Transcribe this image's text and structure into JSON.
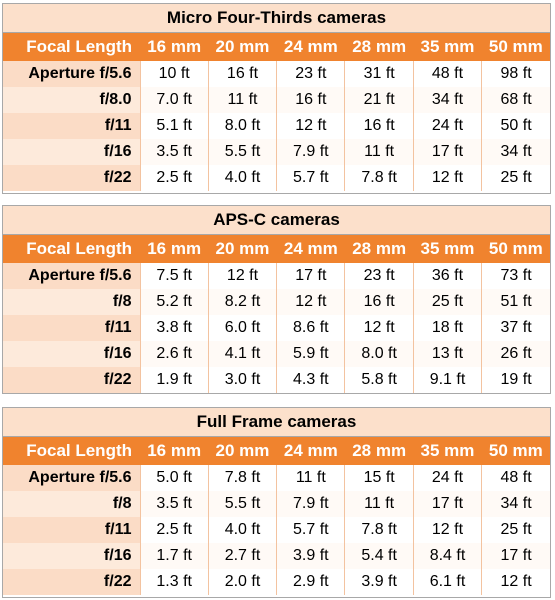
{
  "columns": [
    "16 mm",
    "20 mm",
    "24 mm",
    "28 mm",
    "35 mm",
    "50 mm"
  ],
  "header_label": "Focal Length",
  "tables": [
    {
      "title": "Micro Four-Thirds cameras",
      "rows": [
        {
          "label": "Aperture f/5.6",
          "values": [
            "10 ft",
            "16 ft",
            "23 ft",
            "31 ft",
            "48 ft",
            "98 ft"
          ]
        },
        {
          "label": "f/8.0",
          "values": [
            "7.0 ft",
            "11 ft",
            "16 ft",
            "21 ft",
            "34 ft",
            "68 ft"
          ]
        },
        {
          "label": "f/11",
          "values": [
            "5.1 ft",
            "8.0 ft",
            "12 ft",
            "16 ft",
            "24 ft",
            "50 ft"
          ]
        },
        {
          "label": "f/16",
          "values": [
            "3.5 ft",
            "5.5 ft",
            "7.9 ft",
            "11 ft",
            "17 ft",
            "34 ft"
          ]
        },
        {
          "label": "f/22",
          "values": [
            "2.5 ft",
            "4.0 ft",
            "5.7 ft",
            "7.8 ft",
            "12 ft",
            "25 ft"
          ]
        }
      ]
    },
    {
      "title": "APS-C cameras",
      "rows": [
        {
          "label": "Aperture f/5.6",
          "values": [
            "7.5 ft",
            "12 ft",
            "17 ft",
            "23 ft",
            "36 ft",
            "73 ft"
          ]
        },
        {
          "label": "f/8",
          "values": [
            "5.2 ft",
            "8.2 ft",
            "12 ft",
            "16 ft",
            "25 ft",
            "51 ft"
          ]
        },
        {
          "label": "f/11",
          "values": [
            "3.8 ft",
            "6.0 ft",
            "8.6 ft",
            "12 ft",
            "18 ft",
            "37 ft"
          ]
        },
        {
          "label": "f/16",
          "values": [
            "2.6 ft",
            "4.1 ft",
            "5.9 ft",
            "8.0 ft",
            "13 ft",
            "26 ft"
          ]
        },
        {
          "label": "f/22",
          "values": [
            "1.9 ft",
            "3.0 ft",
            "4.3 ft",
            "5.8 ft",
            "9.1 ft",
            "19 ft"
          ]
        }
      ]
    },
    {
      "title": "Full Frame cameras",
      "rows": [
        {
          "label": "Aperture f/5.6",
          "values": [
            "5.0 ft",
            "7.8 ft",
            "11 ft",
            "15 ft",
            "24 ft",
            "48 ft"
          ]
        },
        {
          "label": "f/8",
          "values": [
            "3.5 ft",
            "5.5 ft",
            "7.9 ft",
            "11 ft",
            "17 ft",
            "34 ft"
          ]
        },
        {
          "label": "f/11",
          "values": [
            "2.5 ft",
            "4.0 ft",
            "5.7 ft",
            "7.8 ft",
            "12 ft",
            "25 ft"
          ]
        },
        {
          "label": "f/16",
          "values": [
            "1.7 ft",
            "2.7 ft",
            "3.9 ft",
            "5.4 ft",
            "8.4 ft",
            "17 ft"
          ]
        },
        {
          "label": "f/22",
          "values": [
            "1.3 ft",
            "2.0 ft",
            "2.9 ft",
            "3.9 ft",
            "6.1 ft",
            "12 ft"
          ]
        }
      ]
    }
  ],
  "colors": {
    "header_orange": "#f0832e",
    "title_peach": "#fce0cb",
    "row_peach": "#fbdcc6",
    "border_gray": "#a8a8a8"
  }
}
